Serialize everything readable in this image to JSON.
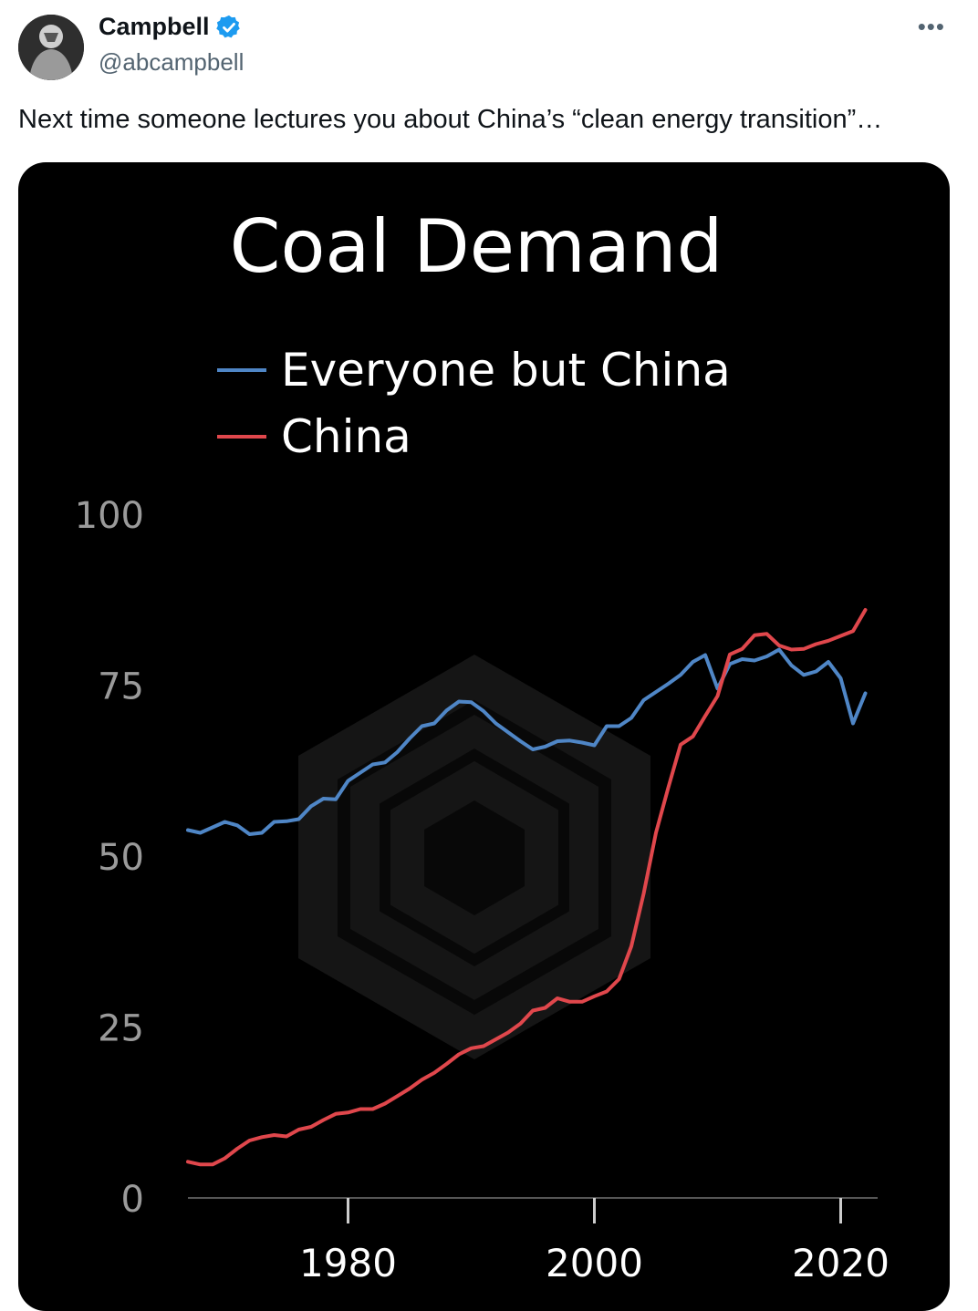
{
  "tweet": {
    "author_name": "Campbell",
    "handle": "@abcampbell",
    "more_label": "•••",
    "text": "Next time someone lectures you about China’s “clean energy transition”…"
  },
  "icons": {
    "verified": "verified-badge-icon",
    "more": "more-options-icon",
    "avatar": "avatar-image"
  },
  "colors": {
    "verified": "#1d9bf0",
    "chart_background": "#000000",
    "everyone_but_china": "#4f86c6",
    "china": "#e0474c"
  },
  "chart_data": {
    "type": "line",
    "title": "Coal Demand",
    "xlabel": "",
    "ylabel": "",
    "xlim": [
      1967,
      2023
    ],
    "ylim": [
      0,
      100
    ],
    "x_ticks": [
      1980,
      2000,
      2020
    ],
    "y_ticks": [
      0,
      25,
      50,
      75,
      100
    ],
    "legend_position": "top-left",
    "grid": false,
    "series": [
      {
        "name": "Everyone but China",
        "color": "#4f86c6",
        "points": [
          [
            1967,
            53.8
          ],
          [
            1968,
            53.4
          ],
          [
            1969,
            54.2
          ],
          [
            1970,
            55.0
          ],
          [
            1971,
            54.5
          ],
          [
            1972,
            53.2
          ],
          [
            1973,
            53.4
          ],
          [
            1974,
            55.0
          ],
          [
            1975,
            55.1
          ],
          [
            1976,
            55.4
          ],
          [
            1977,
            57.3
          ],
          [
            1978,
            58.4
          ],
          [
            1979,
            58.3
          ],
          [
            1980,
            61.0
          ],
          [
            1981,
            62.2
          ],
          [
            1982,
            63.4
          ],
          [
            1983,
            63.7
          ],
          [
            1984,
            65.2
          ],
          [
            1985,
            67.2
          ],
          [
            1986,
            69.0
          ],
          [
            1987,
            69.4
          ],
          [
            1988,
            71.3
          ],
          [
            1989,
            72.6
          ],
          [
            1990,
            72.5
          ],
          [
            1991,
            71.2
          ],
          [
            1992,
            69.4
          ],
          [
            1993,
            68.1
          ],
          [
            1994,
            66.8
          ],
          [
            1995,
            65.6
          ],
          [
            1996,
            66.0
          ],
          [
            1997,
            66.8
          ],
          [
            1998,
            66.9
          ],
          [
            1999,
            66.6
          ],
          [
            2000,
            66.2
          ],
          [
            2001,
            69.0
          ],
          [
            2002,
            69.0
          ],
          [
            2003,
            70.2
          ],
          [
            2004,
            72.8
          ],
          [
            2005,
            74.0
          ],
          [
            2006,
            75.2
          ],
          [
            2007,
            76.5
          ],
          [
            2008,
            78.4
          ],
          [
            2009,
            79.4
          ],
          [
            2010,
            74.5
          ],
          [
            2011,
            78.1
          ],
          [
            2012,
            78.8
          ],
          [
            2013,
            78.6
          ],
          [
            2014,
            79.2
          ],
          [
            2015,
            80.2
          ],
          [
            2016,
            77.9
          ],
          [
            2017,
            76.5
          ],
          [
            2018,
            77.0
          ],
          [
            2019,
            78.4
          ],
          [
            2020,
            76.0
          ],
          [
            2021,
            69.4
          ],
          [
            2022,
            73.8
          ]
        ]
      },
      {
        "name": "China",
        "color": "#e0474c",
        "points": [
          [
            1967,
            5.3
          ],
          [
            1968,
            4.9
          ],
          [
            1969,
            4.9
          ],
          [
            1970,
            5.8
          ],
          [
            1971,
            7.2
          ],
          [
            1972,
            8.4
          ],
          [
            1973,
            8.9
          ],
          [
            1974,
            9.2
          ],
          [
            1975,
            9.0
          ],
          [
            1976,
            10.0
          ],
          [
            1977,
            10.4
          ],
          [
            1978,
            11.4
          ],
          [
            1979,
            12.3
          ],
          [
            1980,
            12.5
          ],
          [
            1981,
            13.0
          ],
          [
            1982,
            13.0
          ],
          [
            1983,
            13.8
          ],
          [
            1984,
            14.9
          ],
          [
            1985,
            16.0
          ],
          [
            1986,
            17.3
          ],
          [
            1987,
            18.3
          ],
          [
            1988,
            19.6
          ],
          [
            1989,
            21.0
          ],
          [
            1990,
            21.9
          ],
          [
            1991,
            22.2
          ],
          [
            1992,
            23.2
          ],
          [
            1993,
            24.2
          ],
          [
            1994,
            25.5
          ],
          [
            1995,
            27.4
          ],
          [
            1996,
            27.8
          ],
          [
            1997,
            29.2
          ],
          [
            1998,
            28.7
          ],
          [
            1999,
            28.7
          ],
          [
            2000,
            29.5
          ],
          [
            2001,
            30.2
          ],
          [
            2002,
            32.0
          ],
          [
            2003,
            36.8
          ],
          [
            2004,
            44.5
          ],
          [
            2005,
            53.4
          ],
          [
            2006,
            60.0
          ],
          [
            2007,
            66.3
          ],
          [
            2008,
            67.5
          ],
          [
            2009,
            70.5
          ],
          [
            2010,
            73.4
          ],
          [
            2011,
            79.5
          ],
          [
            2012,
            80.3
          ],
          [
            2013,
            82.3
          ],
          [
            2014,
            82.5
          ],
          [
            2015,
            80.8
          ],
          [
            2016,
            80.2
          ],
          [
            2017,
            80.3
          ],
          [
            2018,
            81.0
          ],
          [
            2019,
            81.5
          ],
          [
            2020,
            82.2
          ],
          [
            2021,
            82.9
          ],
          [
            2022,
            86.0
          ]
        ]
      }
    ]
  }
}
